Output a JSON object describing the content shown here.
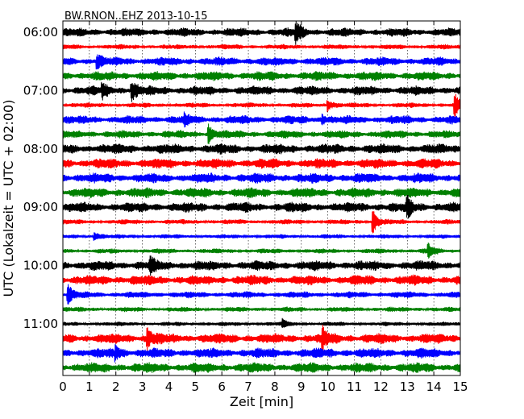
{
  "chart_data": {
    "type": "line",
    "title": "BW.RNON..EHZ 2013-10-15",
    "xlabel": "Zeit  [min]",
    "ylabel": "UTC (Lokalzeit = UTC + 02:00)",
    "xlim": [
      0,
      15
    ],
    "x_ticks": [
      0,
      1,
      2,
      3,
      4,
      5,
      6,
      7,
      8,
      9,
      10,
      11,
      12,
      13,
      14,
      15
    ],
    "y_ticks": [
      "06:00",
      "07:00",
      "08:00",
      "09:00",
      "10:00",
      "11:00"
    ],
    "grid": "vertical dotted",
    "colors": [
      "#000000",
      "#ff0000",
      "#0000ff",
      "#008000"
    ],
    "series": [
      {
        "start": "06:00",
        "color_index": 0,
        "level": 0.45,
        "events": [
          [
            8.8,
            1.3
          ]
        ]
      },
      {
        "start": "06:15",
        "color_index": 1,
        "level": 0.2,
        "events": []
      },
      {
        "start": "06:30",
        "color_index": 2,
        "level": 0.45,
        "events": [
          [
            1.3,
            0.8
          ]
        ]
      },
      {
        "start": "06:45",
        "color_index": 3,
        "level": 0.5,
        "events": []
      },
      {
        "start": "07:00",
        "color_index": 0,
        "level": 0.5,
        "events": [
          [
            1.5,
            0.8
          ],
          [
            2.6,
            1.3
          ]
        ]
      },
      {
        "start": "07:15",
        "color_index": 1,
        "level": 0.2,
        "events": [
          [
            10.0,
            0.9
          ],
          [
            14.8,
            1.5
          ]
        ]
      },
      {
        "start": "07:30",
        "color_index": 2,
        "level": 0.45,
        "events": [
          [
            4.6,
            0.5
          ],
          [
            9.8,
            0.6
          ]
        ]
      },
      {
        "start": "07:45",
        "color_index": 3,
        "level": 0.4,
        "events": [
          [
            5.5,
            1.2
          ]
        ]
      },
      {
        "start": "08:00",
        "color_index": 0,
        "level": 0.55,
        "events": []
      },
      {
        "start": "08:15",
        "color_index": 1,
        "level": 0.55,
        "events": []
      },
      {
        "start": "08:30",
        "color_index": 2,
        "level": 0.55,
        "events": []
      },
      {
        "start": "08:45",
        "color_index": 3,
        "level": 0.55,
        "events": []
      },
      {
        "start": "09:00",
        "color_index": 0,
        "level": 0.55,
        "events": [
          [
            13.0,
            1.2
          ]
        ]
      },
      {
        "start": "09:15",
        "color_index": 1,
        "level": 0.2,
        "events": [
          [
            11.7,
            1.6
          ]
        ]
      },
      {
        "start": "09:30",
        "color_index": 2,
        "level": 0.15,
        "events": [
          [
            1.2,
            0.6
          ]
        ]
      },
      {
        "start": "09:45",
        "color_index": 3,
        "level": 0.2,
        "events": [
          [
            13.8,
            0.9
          ]
        ]
      },
      {
        "start": "10:00",
        "color_index": 0,
        "level": 0.55,
        "events": [
          [
            3.3,
            0.8
          ]
        ]
      },
      {
        "start": "10:15",
        "color_index": 1,
        "level": 0.55,
        "events": []
      },
      {
        "start": "10:30",
        "color_index": 2,
        "level": 0.3,
        "events": [
          [
            0.2,
            1.2
          ]
        ]
      },
      {
        "start": "10:45",
        "color_index": 3,
        "level": 0.2,
        "events": []
      },
      {
        "start": "11:00",
        "color_index": 0,
        "level": 0.15,
        "events": [
          [
            8.3,
            0.5
          ]
        ]
      },
      {
        "start": "11:15",
        "color_index": 1,
        "level": 0.55,
        "events": [
          [
            3.2,
            1.3
          ],
          [
            9.8,
            1.2
          ]
        ]
      },
      {
        "start": "11:30",
        "color_index": 2,
        "level": 0.55,
        "events": [
          [
            2.0,
            0.8
          ]
        ]
      },
      {
        "start": "11:45",
        "color_index": 3,
        "level": 0.55,
        "events": []
      }
    ]
  }
}
